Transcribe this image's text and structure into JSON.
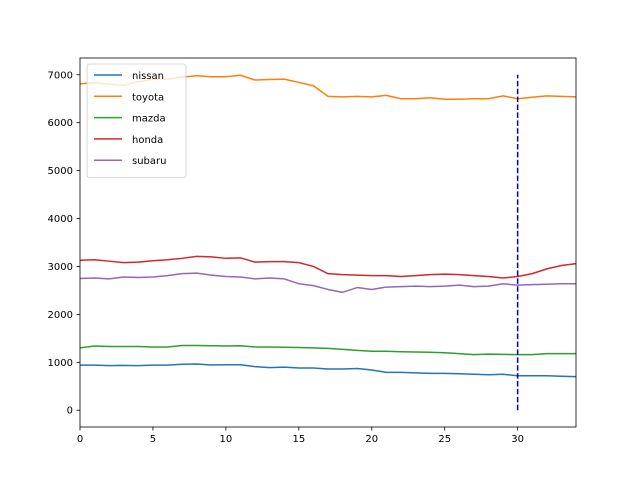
{
  "chart_data": {
    "type": "line",
    "title": "",
    "xlabel": "",
    "ylabel": "",
    "xlim": [
      0,
      34
    ],
    "ylim": [
      -350,
      7350
    ],
    "xticks": [
      0,
      5,
      10,
      15,
      20,
      25,
      30
    ],
    "yticks": [
      0,
      1000,
      2000,
      3000,
      4000,
      5000,
      6000,
      7000
    ],
    "grid": false,
    "legend_position": "top-left",
    "x": [
      0,
      1,
      2,
      3,
      4,
      5,
      6,
      7,
      8,
      9,
      10,
      11,
      12,
      13,
      14,
      15,
      16,
      17,
      18,
      19,
      20,
      21,
      22,
      23,
      24,
      25,
      26,
      27,
      28,
      29,
      30,
      31,
      32,
      33,
      34
    ],
    "series": [
      {
        "name": "nissan",
        "color": "#1f77b4",
        "values": [
          940,
          940,
          930,
          935,
          930,
          940,
          940,
          960,
          965,
          945,
          950,
          950,
          910,
          890,
          900,
          880,
          880,
          860,
          860,
          870,
          840,
          790,
          790,
          780,
          770,
          770,
          760,
          750,
          740,
          750,
          720,
          720,
          720,
          710,
          700
        ]
      },
      {
        "name": "toyota",
        "color": "#ff7f0e",
        "values": [
          6810,
          6840,
          6800,
          6780,
          6860,
          6900,
          6910,
          6950,
          6980,
          6960,
          6960,
          6990,
          6890,
          6900,
          6910,
          6840,
          6770,
          6550,
          6540,
          6550,
          6540,
          6570,
          6500,
          6500,
          6520,
          6490,
          6490,
          6500,
          6500,
          6560,
          6500,
          6530,
          6560,
          6550,
          6540
        ]
      },
      {
        "name": "mazda",
        "color": "#2ca02c",
        "values": [
          1300,
          1340,
          1330,
          1330,
          1330,
          1320,
          1320,
          1350,
          1350,
          1345,
          1340,
          1345,
          1320,
          1320,
          1315,
          1310,
          1300,
          1290,
          1270,
          1250,
          1230,
          1230,
          1220,
          1215,
          1210,
          1200,
          1180,
          1160,
          1170,
          1165,
          1160,
          1160,
          1180,
          1180,
          1180
        ]
      },
      {
        "name": "honda",
        "color": "#d62728",
        "values": [
          3130,
          3140,
          3110,
          3080,
          3090,
          3120,
          3140,
          3170,
          3210,
          3200,
          3170,
          3180,
          3090,
          3100,
          3100,
          3080,
          3000,
          2850,
          2830,
          2820,
          2810,
          2810,
          2790,
          2810,
          2830,
          2840,
          2830,
          2810,
          2790,
          2760,
          2790,
          2850,
          2950,
          3020,
          3060
        ]
      },
      {
        "name": "subaru",
        "color": "#9467bd",
        "values": [
          2750,
          2760,
          2740,
          2780,
          2770,
          2780,
          2810,
          2850,
          2860,
          2820,
          2790,
          2780,
          2740,
          2760,
          2740,
          2640,
          2600,
          2520,
          2460,
          2560,
          2520,
          2570,
          2580,
          2590,
          2580,
          2590,
          2610,
          2580,
          2590,
          2640,
          2610,
          2620,
          2630,
          2640,
          2640
        ]
      }
    ],
    "annotations": [
      {
        "type": "vertical-dashed-line",
        "x": 30,
        "y_from": 0,
        "y_to": 7000,
        "color": "#0000cc"
      }
    ]
  }
}
